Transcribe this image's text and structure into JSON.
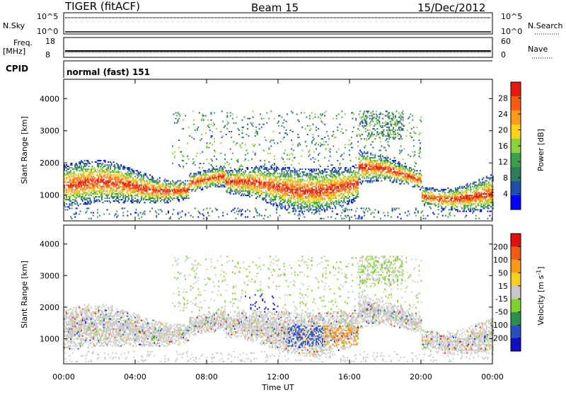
{
  "header": {
    "left": "TIGER (fitACF)",
    "center": "Beam 15",
    "right": "15/Dec/2012"
  },
  "strips": {
    "nsky_label": "N.Sky",
    "nsky_ticks": [
      "10^5",
      "10^0"
    ],
    "nsearch_label": "N.Search",
    "nsearch_ticks": [
      "10^5",
      "10^0"
    ],
    "freq_label": "Freq.",
    "freq_unit": "[MHz]",
    "freq_ticks": [
      "18",
      "8"
    ],
    "nave_label": "Nave",
    "nave_ticks": [
      "60",
      "0"
    ],
    "cpid_label": "CPID",
    "cpid_value": "normal (fast) 151"
  },
  "chart_data": [
    {
      "type": "heatmap",
      "name": "power",
      "ylabel": "Slant Range [km]",
      "ylim": [
        200,
        4600
      ],
      "yticks": [
        "4000",
        "3000",
        "2000",
        "1000"
      ],
      "colorbar_label": "Power [dB]",
      "colorbar_ticks": [
        "28",
        "24",
        "20",
        "16",
        "12",
        "8",
        "4"
      ],
      "colors": [
        "#0000ff",
        "#1f4fa8",
        "#2e7d5a",
        "#3aa14a",
        "#8fd13a",
        "#ffd21a",
        "#ff9a1a",
        "#ff5a14",
        "#e8170f"
      ]
    },
    {
      "type": "heatmap",
      "name": "velocity",
      "ylabel": "Slant Range [km]",
      "ylim": [
        200,
        4600
      ],
      "yticks": [
        "4000",
        "3000",
        "2000",
        "1000"
      ],
      "colorbar_label": "Velocity [m s",
      "colorbar_label_sup": "-1",
      "colorbar_label_end": "]",
      "colorbar_ticks": [
        "200",
        "100",
        "50",
        "15",
        "-15",
        "-50",
        "-100",
        "-200"
      ],
      "colors": [
        "#1010c0",
        "#2a4ec0",
        "#2b8f4e",
        "#7fd02b",
        "#c8c8c8",
        "#f5d020",
        "#f79a18",
        "#f55a14",
        "#e01010"
      ]
    }
  ],
  "xaxis": {
    "label": "Time UT",
    "ticks": [
      "00:00",
      "04:00",
      "08:00",
      "12:00",
      "16:00",
      "20:00",
      "00:00"
    ]
  }
}
